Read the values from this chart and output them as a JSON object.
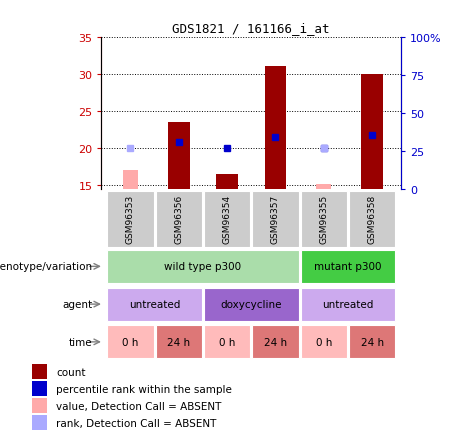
{
  "title": "GDS1821 / 161166_i_at",
  "samples": [
    "GSM96353",
    "GSM96356",
    "GSM96354",
    "GSM96357",
    "GSM96355",
    "GSM96358"
  ],
  "x_positions": [
    1,
    2,
    3,
    4,
    5,
    6
  ],
  "bar_values": [
    null,
    23.5,
    16.5,
    31.0,
    null,
    30.0
  ],
  "bar_absent_values": [
    17.0,
    null,
    null,
    null,
    15.2,
    null
  ],
  "rank_values": [
    null,
    20.8,
    20.0,
    21.5,
    20.0,
    21.8
  ],
  "rank_absent_values": [
    20.0,
    null,
    null,
    null,
    20.0,
    null
  ],
  "ylim_left": [
    14.5,
    35
  ],
  "ylim_right": [
    0,
    100
  ],
  "right_ticks": [
    0,
    25,
    50,
    75,
    100
  ],
  "right_tick_labels": [
    "0",
    "25",
    "50",
    "75",
    "100%"
  ],
  "left_ticks": [
    15,
    20,
    25,
    30,
    35
  ],
  "bar_color": "#990000",
  "bar_absent_color": "#ffaaaa",
  "rank_color": "#0000cc",
  "rank_absent_color": "#aaaaff",
  "grid_color": "#000000",
  "bar_width": 0.45,
  "genotype_row": {
    "label": "genotype/variation",
    "groups": [
      {
        "text": "wild type p300",
        "span": [
          1,
          4
        ],
        "color": "#aaddaa"
      },
      {
        "text": "mutant p300",
        "span": [
          5,
          6
        ],
        "color": "#44cc44"
      }
    ]
  },
  "agent_row": {
    "label": "agent",
    "groups": [
      {
        "text": "untreated",
        "span": [
          1,
          2
        ],
        "color": "#ccaaee"
      },
      {
        "text": "doxycycline",
        "span": [
          3,
          4
        ],
        "color": "#9966cc"
      },
      {
        "text": "untreated",
        "span": [
          5,
          6
        ],
        "color": "#ccaaee"
      }
    ]
  },
  "time_row": {
    "label": "time",
    "groups": [
      {
        "text": "0 h",
        "span": [
          1,
          1
        ],
        "color": "#ffbbbb"
      },
      {
        "text": "24 h",
        "span": [
          2,
          2
        ],
        "color": "#dd7777"
      },
      {
        "text": "0 h",
        "span": [
          3,
          3
        ],
        "color": "#ffbbbb"
      },
      {
        "text": "24 h",
        "span": [
          4,
          4
        ],
        "color": "#dd7777"
      },
      {
        "text": "0 h",
        "span": [
          5,
          5
        ],
        "color": "#ffbbbb"
      },
      {
        "text": "24 h",
        "span": [
          6,
          6
        ],
        "color": "#dd7777"
      }
    ]
  },
  "legend_items": [
    {
      "label": "count",
      "color": "#990000"
    },
    {
      "label": "percentile rank within the sample",
      "color": "#0000cc"
    },
    {
      "label": "value, Detection Call = ABSENT",
      "color": "#ffaaaa"
    },
    {
      "label": "rank, Detection Call = ABSENT",
      "color": "#aaaaff"
    }
  ],
  "sample_box_color": "#cccccc",
  "left_axis_color": "#cc0000",
  "right_axis_color": "#0000cc",
  "xlim": [
    0.4,
    6.6
  ]
}
